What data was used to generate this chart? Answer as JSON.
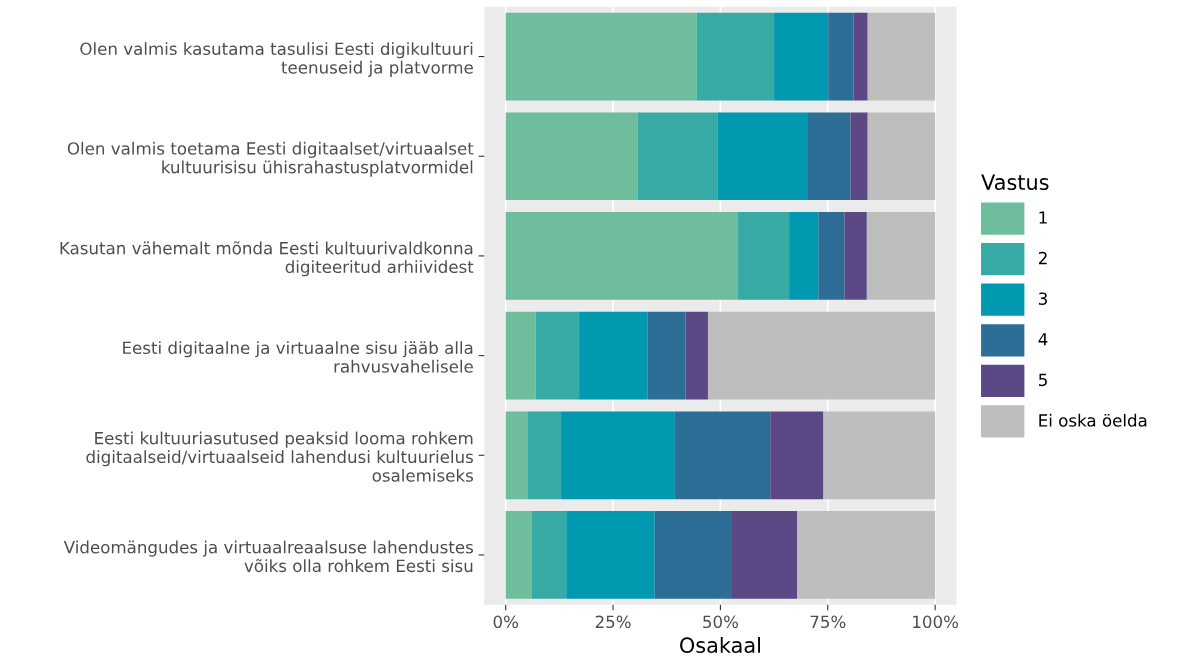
{
  "chart_data": {
    "type": "bar",
    "orientation": "horizontal",
    "stacked": true,
    "xlabel": "Osakaal",
    "legend_title": "Vastus",
    "legend": "right",
    "grid": "x",
    "categories": [
      "Olen valmis kasutama tasulisi Eesti digikultuuri\nteenuseid ja platvorme",
      "Olen valmis toetama Eesti digitaalset/virtuaalset\nkultuurisisu ühisrahastusplatvormidel",
      "Kasutan vähemalt mõnda Eesti kultuurivaldkonna\ndigiteeritud arhiividest",
      "Eesti digitaalne ja virtuaalne sisu jääb alla\nrahvusvahelisele",
      "Eesti kultuuriasutused peaksid looma rohkem\ndigitaalseid/virtuaalseid lahendusi kultuurielus\nosalemiseks",
      "Videomängudes ja virtuaalreaalsuse lahendustes\nvõiks olla rohkem Eesti sisu"
    ],
    "xlim": [
      -0.05,
      1.05
    ],
    "xticks": [
      {
        "value": 0,
        "label": "0%"
      },
      {
        "value": 0.25,
        "label": "25%"
      },
      {
        "value": 0.5,
        "label": "50%"
      },
      {
        "value": 0.75,
        "label": "75%"
      },
      {
        "value": 1,
        "label": "100%"
      }
    ],
    "series": [
      {
        "name": "1",
        "color": "#6ebe9e",
        "values": [
          0.445,
          0.307,
          0.541,
          0.07,
          0.052,
          0.061
        ]
      },
      {
        "name": "2",
        "color": "#37aaa6",
        "values": [
          0.18,
          0.187,
          0.119,
          0.101,
          0.077,
          0.08
        ]
      },
      {
        "name": "3",
        "color": "#0099b0",
        "values": [
          0.126,
          0.208,
          0.068,
          0.159,
          0.265,
          0.206
        ]
      },
      {
        "name": "4",
        "color": "#2d6e96",
        "values": [
          0.059,
          0.101,
          0.061,
          0.089,
          0.222,
          0.18
        ]
      },
      {
        "name": "5",
        "color": "#5b4884",
        "values": [
          0.033,
          0.04,
          0.052,
          0.052,
          0.124,
          0.152
        ]
      },
      {
        "name": "Ei oska öelda",
        "color": "#bebebe",
        "values": [
          0.157,
          0.157,
          0.159,
          0.529,
          0.26,
          0.321
        ]
      }
    ]
  }
}
